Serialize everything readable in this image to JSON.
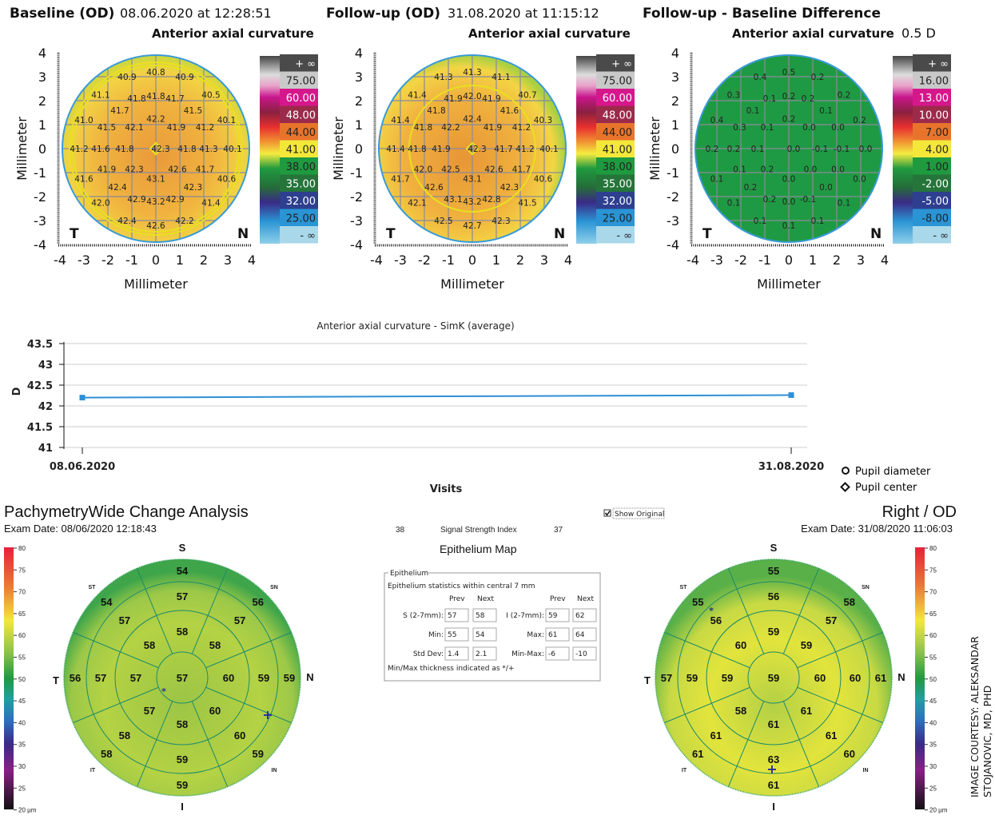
{
  "maps": [
    {
      "title": "Baseline (OD)",
      "datetime": "08.06.2020 at 12:28:51",
      "subtitle": "Anterior axial curvature",
      "extra": "",
      "values": [
        "40.8",
        "40.9",
        "40.9",
        "41.1",
        "41.8",
        "41.8",
        "41.7",
        "40.5",
        "41.7",
        "41.5",
        "41.0",
        "42.2",
        "40.1",
        "41.5",
        "42.1",
        "41.9",
        "41.2",
        "41.2",
        "41.6",
        "41.8",
        "42.3",
        "41.8",
        "41.3",
        "40.1",
        "41.9",
        "42.3",
        "42.6",
        "41.7",
        "41.6",
        "43.1",
        "40.6",
        "42.4",
        "42.3",
        "42.0",
        "42.9",
        "43.2",
        "42.9",
        "41.4",
        "42.4",
        "42.6",
        "42.2"
      ],
      "legend": [
        "+ ∞",
        "75.00",
        "60.00",
        "48.00",
        "44.00",
        "41.00",
        "38.00",
        "35.00",
        "32.00",
        "25.00",
        "- ∞"
      ]
    },
    {
      "title": "Follow-up (OD)",
      "datetime": "31.08.2020 at 11:15:12",
      "subtitle": "Anterior axial curvature",
      "extra": "",
      "values": [
        "41.3",
        "41.3",
        "41.1",
        "41.4",
        "41.9",
        "42.0",
        "41.9",
        "40.7",
        "41.8",
        "41.6",
        "41.4",
        "42.4",
        "40.3",
        "41.8",
        "42.2",
        "41.9",
        "41.2",
        "41.4",
        "41.8",
        "41.9",
        "42.3",
        "41.7",
        "41.2",
        "40.1",
        "42.0",
        "42.5",
        "42.6",
        "41.7",
        "41.7",
        "43.1",
        "40.6",
        "42.6",
        "42.3",
        "42.1",
        "43.1",
        "43.2",
        "42.8",
        "41.5",
        "42.5",
        "42.7",
        "42.3"
      ],
      "legend": [
        "+ ∞",
        "75.00",
        "60.00",
        "48.00",
        "44.00",
        "41.00",
        "38.00",
        "35.00",
        "32.00",
        "25.00",
        "- ∞"
      ]
    },
    {
      "title": "Follow-up - Baseline Difference",
      "datetime": "",
      "subtitle": "Anterior axial curvature",
      "extra": "0.5 D",
      "values": [
        "0.5",
        "0.4",
        "0.2",
        "0.3",
        "0.1",
        "0.2",
        "0.2",
        "0.2",
        "0.1",
        "0.1",
        "0.4",
        "0.2",
        "0.2",
        "0.3",
        "0.1",
        "0.0",
        "0.0",
        "0.2",
        "0.2",
        "0.1",
        "0.0",
        "-0.1",
        "-0.1",
        "0.0",
        "0.1",
        "0.2",
        "0.0",
        "0.0",
        "0.1",
        "0.0",
        "0.0",
        "0.2",
        "0.0",
        "0.1",
        "0.2",
        "0.0",
        "-0.1",
        "0.1",
        "0.1",
        "0.1",
        "0.1"
      ],
      "legend": [
        "+ ∞",
        "16.00",
        "13.00",
        "10.00",
        "7.00",
        "4.00",
        "1.00",
        "-2.00",
        "-5.00",
        "-8.00",
        "- ∞"
      ]
    }
  ],
  "map_axis": {
    "label": "Millimeter",
    "ticks": [
      "4",
      "3",
      "2",
      "1",
      "0",
      "-1",
      "-2",
      "-3",
      "-4"
    ],
    "xticks": [
      "-4",
      "-3",
      "-2",
      "-1",
      "0",
      "1",
      "2",
      "3",
      "4"
    ],
    "temporal": "T",
    "nasal": "N"
  },
  "legend_colors": [
    "#4a4a4a",
    "#c9c9c9",
    "#d6178c",
    "#9c2a4a",
    "#e8742c",
    "#f3e83a",
    "#1f9a3f",
    "#25753a",
    "#2e3f8f",
    "#2a94d4",
    "#a9d8ea"
  ],
  "chart_data": {
    "type": "line",
    "title": "Anterior axial curvature - SimK (average)",
    "xlabel": "Visits",
    "ylabel": "D",
    "categories": [
      "08.06.2020",
      "31.08.2020"
    ],
    "values": [
      42.2,
      42.26
    ],
    "yticks": [
      "43.5",
      "43",
      "42.5",
      "42",
      "41.5",
      "41"
    ],
    "ylim": [
      41,
      43.5
    ],
    "grid": true,
    "color": "#2f8fd6",
    "legend": [
      {
        "icon": "circle",
        "label": "Pupil diameter"
      },
      {
        "icon": "diamond",
        "label": "Pupil center"
      }
    ]
  },
  "pachy": {
    "title": "PachymetryWide Change Analysis",
    "eye": "Right / OD",
    "exam_left": "Exam Date: 08/06/2020 12:18:43",
    "exam_right": "Exam Date: 31/08/2020 11:06:03",
    "ssi_prev": "38",
    "ssi_label": "Signal Strength Index",
    "ssi_next": "37",
    "map_title": "Epithelium Map",
    "show_original": "Show Original",
    "directions": {
      "S": "S",
      "I": "I",
      "T": "T",
      "N": "N",
      "ST": "ST",
      "SN": "SN",
      "IT": "IT",
      "IN": "IN"
    },
    "scale_ticks": [
      "80",
      "75",
      "70",
      "65",
      "60",
      "55",
      "50",
      "45",
      "40",
      "35",
      "30",
      "25",
      "20 µm"
    ],
    "left": {
      "center": "57",
      "inner": [
        "58",
        "58",
        "60",
        "60",
        "58",
        "57",
        "57",
        "58"
      ],
      "middle": [
        "57",
        "57",
        "59",
        "60",
        "59",
        "58",
        "57",
        "57"
      ],
      "outer": [
        "54",
        "56",
        "59",
        "59",
        "59",
        "58",
        "56",
        "54"
      ]
    },
    "right": {
      "center": "59",
      "inner": [
        "59",
        "59",
        "60",
        "61",
        "61",
        "58",
        "59",
        "60"
      ],
      "middle": [
        "56",
        "57",
        "60",
        "61",
        "63",
        "61",
        "59",
        "56"
      ],
      "outer": [
        "55",
        "58",
        "61",
        "60",
        "61",
        "61",
        "57",
        "55"
      ]
    },
    "stats": {
      "group": "Epithelium",
      "caption": "Epithelium statistics within central 7 mm",
      "prev": "Prev",
      "next": "Next",
      "rows": [
        {
          "l1": "S (2-7mm):",
          "p1": "57",
          "n1": "58",
          "l2": "I (2-7mm):",
          "p2": "59",
          "n2": "62"
        },
        {
          "l1": "Min:",
          "p1": "55",
          "n1": "54",
          "l2": "Max:",
          "p2": "61",
          "n2": "64"
        },
        {
          "l1": "Std Dev:",
          "p1": "1.4",
          "n1": "2.1",
          "l2": "Min-Max:",
          "p2": "-6",
          "n2": "-10"
        }
      ],
      "footer": "Min/Max thickness indicated as */+"
    }
  },
  "credit": [
    "IMAGE COURTESY: ALEKSANDAR",
    "STOJANOVIC, MD, PHD"
  ]
}
